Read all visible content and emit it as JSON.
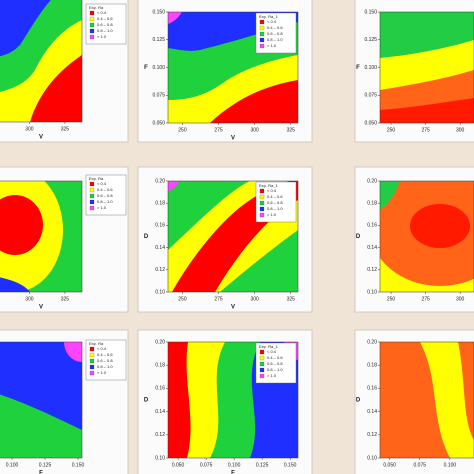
{
  "chart_data": [
    {
      "type": "contour",
      "xlabel": "V",
      "xlim": [
        240,
        337
      ],
      "xticks": [
        300,
        325
      ],
      "colors": [
        "#ff0000",
        "#ffff00",
        "#1fd13c",
        "#1f2fff",
        "#ff44ff"
      ],
      "legend": {
        "title": "Exp. Ra",
        "entries": [
          "< 0.4",
          "0.4 – 0.6",
          "0.6 – 0.8",
          "0.8 – 1.0",
          "> 1.0"
        ]
      }
    },
    {
      "type": "contour",
      "xlabel": "V",
      "ylabel": "F",
      "xlim": [
        240,
        330
      ],
      "xticks": [
        250,
        275,
        300,
        325
      ],
      "ylim": [
        0.05,
        0.15
      ],
      "yticks": [
        {
          "value": 0.05,
          "label": "0.050"
        },
        {
          "value": 0.075,
          "label": "0.075"
        },
        {
          "value": 0.1,
          "label": "0.100"
        },
        {
          "value": 0.125,
          "label": "0.125"
        },
        {
          "value": 0.15,
          "label": "0.150"
        }
      ],
      "colors": [
        "#ff0000",
        "#ffff00",
        "#1fd13c",
        "#1f2fff",
        "#ff44ff"
      ],
      "legend": {
        "title": "Exp. Ra_1",
        "entries": [
          "< 0.4",
          "0.4 – 0.6",
          "0.6 – 0.8",
          "0.8 – 1.0",
          "> 1.0"
        ]
      }
    },
    {
      "type": "contour",
      "ylabel": "F",
      "xlim": [
        242,
        310
      ],
      "xticks": [
        250,
        275,
        300
      ],
      "ylim": [
        0.05,
        0.15
      ],
      "yticks": [
        {
          "value": 0.05,
          "label": "0.050"
        },
        {
          "value": 0.075,
          "label": "0.075"
        },
        {
          "value": 0.1,
          "label": "0.100"
        },
        {
          "value": 0.125,
          "label": "0.125"
        },
        {
          "value": 0.15,
          "label": "0.150"
        }
      ],
      "colors": [
        "#ff1a00",
        "#ff6418",
        "#ffff00",
        "#22cc44"
      ]
    },
    {
      "type": "contour",
      "xlabel": "V",
      "xlim": [
        240,
        337
      ],
      "xticks": [
        300,
        325
      ],
      "colors": [
        "#ff0000",
        "#ffff00",
        "#1fd13c",
        "#1f2fff",
        "#ff44ff"
      ],
      "legend": {
        "title": "Exp. Ra",
        "entries": [
          "< 0.4",
          "0.4 – 0.6",
          "0.6 – 0.8",
          "0.8 – 1.0",
          "> 1.0"
        ]
      }
    },
    {
      "type": "contour",
      "xlabel": "V",
      "ylabel": "D",
      "xlim": [
        240,
        330
      ],
      "xticks": [
        250,
        275,
        300,
        325
      ],
      "ylim": [
        0.1,
        0.2
      ],
      "yticks": [
        {
          "value": 0.1,
          "label": "0.10"
        },
        {
          "value": 0.12,
          "label": "0.12"
        },
        {
          "value": 0.14,
          "label": "0.14"
        },
        {
          "value": 0.16,
          "label": "0.16"
        },
        {
          "value": 0.18,
          "label": "0.18"
        },
        {
          "value": 0.2,
          "label": "0.20"
        }
      ],
      "colors": [
        "#ff0000",
        "#ffff00",
        "#1fd13c",
        "#1f2fff",
        "#ff44ff"
      ],
      "legend": {
        "title": "Exp. Ra_1",
        "entries": [
          "< 0.4",
          "0.4 – 0.6",
          "0.6 – 0.8",
          "0.8 – 1.0",
          "> 1.0"
        ]
      }
    },
    {
      "type": "contour",
      "ylabel": "D",
      "xlim": [
        242,
        310
      ],
      "xticks": [
        250,
        275,
        300
      ],
      "ylim": [
        0.1,
        0.2
      ],
      "yticks": [
        {
          "value": 0.1,
          "label": "0.10"
        },
        {
          "value": 0.12,
          "label": "0.12"
        },
        {
          "value": 0.14,
          "label": "0.14"
        },
        {
          "value": 0.16,
          "label": "0.16"
        },
        {
          "value": 0.18,
          "label": "0.18"
        },
        {
          "value": 0.2,
          "label": "0.20"
        }
      ],
      "colors": [
        "#ff1a00",
        "#ff6418",
        "#ffff00",
        "#22cc44"
      ]
    },
    {
      "type": "contour",
      "xlabel": "F",
      "xlim": [
        0.05,
        0.153
      ],
      "xticks": [
        {
          "value": 0.1,
          "label": "0.100"
        },
        {
          "value": 0.125,
          "label": "0.125"
        },
        {
          "value": 0.15,
          "label": "0.150"
        }
      ],
      "colors": [
        "#ff0000",
        "#ffff00",
        "#1fd13c",
        "#1f2fff",
        "#ff44ff"
      ],
      "legend": {
        "title": "Exp. Ra",
        "entries": [
          "< 0.4",
          "0.4 – 0.6",
          "0.6 – 0.8",
          "0.8 – 1.0",
          "> 1.0"
        ]
      }
    },
    {
      "type": "contour",
      "xlabel": "F",
      "ylabel": "D",
      "xlim": [
        0.041,
        0.157
      ],
      "xticks": [
        {
          "value": 0.05,
          "label": "0.050"
        },
        {
          "value": 0.075,
          "label": "0.075"
        },
        {
          "value": 0.1,
          "label": "0.100"
        },
        {
          "value": 0.125,
          "label": "0.125"
        },
        {
          "value": 0.15,
          "label": "0.150"
        }
      ],
      "ylim": [
        0.1,
        0.2
      ],
      "yticks": [
        {
          "value": 0.1,
          "label": "0.10"
        },
        {
          "value": 0.12,
          "label": "0.12"
        },
        {
          "value": 0.14,
          "label": "0.14"
        },
        {
          "value": 0.16,
          "label": "0.16"
        },
        {
          "value": 0.18,
          "label": "0.18"
        },
        {
          "value": 0.2,
          "label": "0.20"
        }
      ],
      "colors": [
        "#ff0000",
        "#ffff00",
        "#1fd13c",
        "#1f2fff",
        "#ff44ff"
      ],
      "legend": {
        "title": "Exp. Ra_1",
        "entries": [
          "< 0.4",
          "0.4 – 0.6",
          "0.6 – 0.8",
          "0.8 – 1.0",
          "> 1.0"
        ]
      }
    },
    {
      "type": "contour",
      "ylabel": "D",
      "xlim": [
        0.042,
        0.12
      ],
      "xticks": [
        {
          "value": 0.05,
          "label": "0.050"
        },
        {
          "value": 0.075,
          "label": "0.075"
        },
        {
          "value": 0.1,
          "label": "0.100"
        }
      ],
      "ylim": [
        0.1,
        0.2
      ],
      "yticks": [
        {
          "value": 0.1,
          "label": "0.10"
        },
        {
          "value": 0.12,
          "label": "0.12"
        },
        {
          "value": 0.14,
          "label": "0.14"
        },
        {
          "value": 0.16,
          "label": "0.16"
        },
        {
          "value": 0.18,
          "label": "0.18"
        },
        {
          "value": 0.2,
          "label": "0.20"
        }
      ],
      "colors": [
        "#ff1a00",
        "#ff6418",
        "#ffff00",
        "#22cc44"
      ]
    }
  ]
}
